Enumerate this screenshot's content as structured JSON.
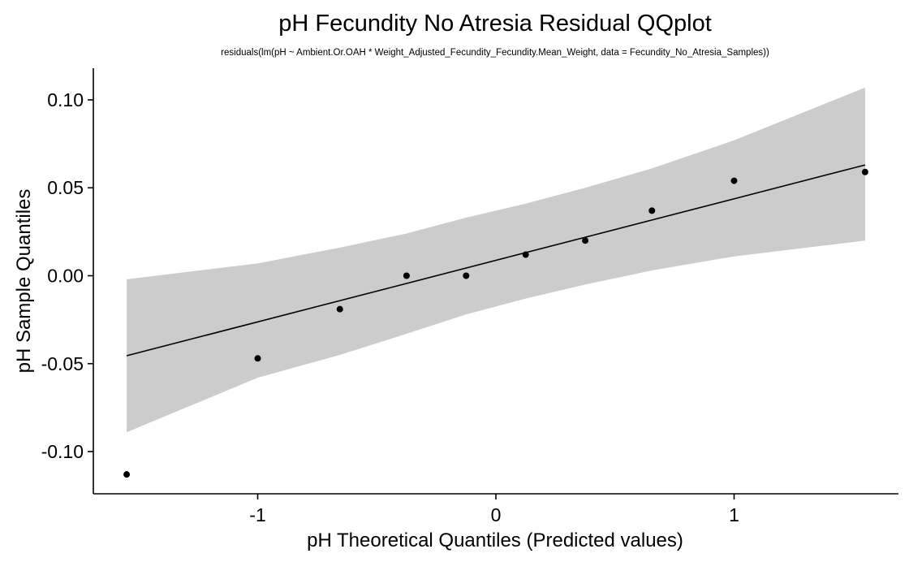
{
  "chart_data": {
    "type": "scatter",
    "title": "pH Fecundity No Atresia Residual QQplot",
    "subtitle": "residuals(lm(pH ~ Ambient.Or.OAH * Weight_Adjusted_Fecundity_Fecundity.Mean_Weight, data = Fecundity_No_Atresia_Samples))",
    "xlabel": "pH Theoretical Quantiles (Predicted values)",
    "ylabel": "pH Sample Quantiles",
    "xlim": [
      -1.69,
      1.69
    ],
    "ylim": [
      -0.124,
      0.118
    ],
    "x_ticks": [
      -1,
      0,
      1
    ],
    "x_tick_labels": [
      "-1",
      "0",
      "1"
    ],
    "y_ticks": [
      -0.1,
      -0.05,
      0.0,
      0.05,
      0.1
    ],
    "y_tick_labels": [
      "-0.10",
      "-0.05",
      "0.00",
      "0.05",
      "0.10"
    ],
    "grid": false,
    "points": {
      "x": [
        -1.55,
        -1.0,
        -0.655,
        -0.375,
        -0.125,
        0.125,
        0.375,
        0.655,
        1.0,
        1.55
      ],
      "y": [
        -0.113,
        -0.047,
        -0.019,
        0.0,
        0.0,
        0.012,
        0.02,
        0.037,
        0.054,
        0.059
      ]
    },
    "reference_line": {
      "x": [
        -1.55,
        1.55
      ],
      "y": [
        -0.0455,
        0.063
      ]
    },
    "confidence_band": {
      "x": [
        -1.55,
        -1.0,
        -0.655,
        -0.375,
        -0.125,
        0.125,
        0.375,
        0.655,
        1.0,
        1.55
      ],
      "lower": [
        -0.089,
        -0.058,
        -0.045,
        -0.033,
        -0.022,
        -0.013,
        -0.005,
        0.003,
        0.011,
        0.02
      ],
      "upper": [
        -0.002,
        0.007,
        0.016,
        0.024,
        0.033,
        0.041,
        0.05,
        0.061,
        0.077,
        0.107
      ]
    },
    "colors": {
      "points": "#000000",
      "line": "#000000",
      "band": "#cccccc",
      "axis": "#000000",
      "background": "#ffffff"
    }
  }
}
